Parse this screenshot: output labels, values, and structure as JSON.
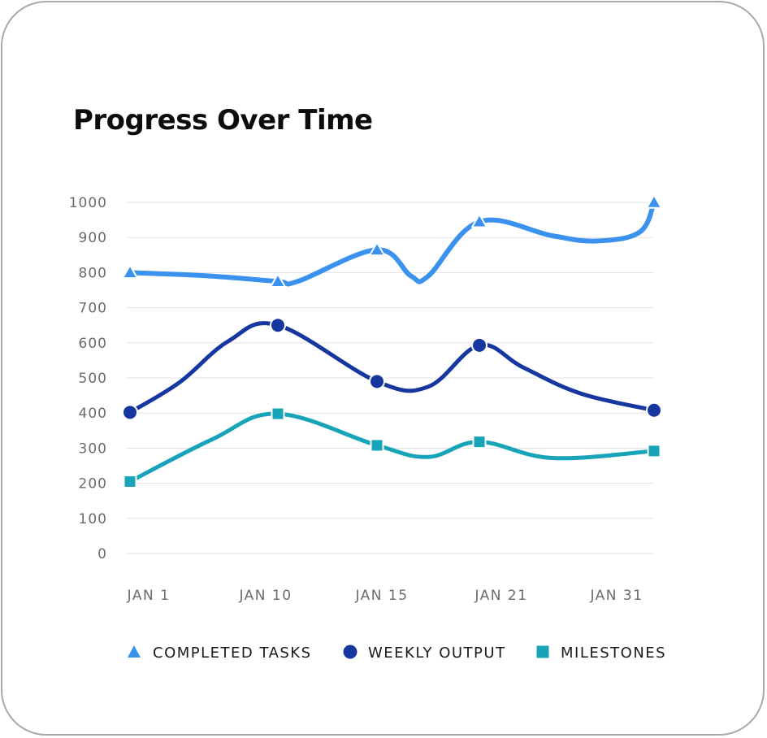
{
  "chart_data": {
    "type": "line",
    "title": "Progress Over Time",
    "xlabel": "",
    "ylabel": "",
    "ylim": [
      0,
      1000
    ],
    "yticks": [
      0,
      100,
      200,
      300,
      400,
      500,
      600,
      700,
      800,
      900,
      1000
    ],
    "x_tick_labels": [
      "JAN 1",
      "JAN 10",
      "JAN 15",
      "JAN 21",
      "JAN 31"
    ],
    "x_ticks": [
      1,
      10,
      15,
      21,
      31
    ],
    "x_domain": [
      0,
      32
    ],
    "grid": true,
    "legend_position": "bottom",
    "series": [
      {
        "name": "COMPLETED TASKS",
        "color": "#3b91ee",
        "marker": "triangle",
        "x": [
          1,
          6,
          10,
          11,
          15,
          17,
          18,
          21,
          26,
          29,
          32
        ],
        "values": [
          800,
          790,
          775,
          775,
          865,
          790,
          790,
          945,
          905,
          890,
          915
        ],
        "marker_x": [
          1,
          10,
          15,
          21,
          33
        ],
        "marker_values": [
          800,
          775,
          865,
          945,
          1000
        ]
      },
      {
        "name": "WEEKLY OUTPUT",
        "color": "#1637a0",
        "marker": "circle",
        "x": [
          1,
          4,
          7,
          10,
          15,
          18,
          21,
          24,
          28,
          33
        ],
        "values": [
          402,
          487,
          605,
          650,
          490,
          475,
          593,
          530,
          455,
          408
        ],
        "marker_x": [
          1,
          10,
          15,
          21,
          33
        ],
        "marker_values": [
          402,
          650,
          490,
          593,
          408
        ]
      },
      {
        "name": "MILESTONES",
        "color": "#17a3b8",
        "marker": "square",
        "x": [
          1,
          6,
          10,
          15,
          18,
          21,
          26,
          33
        ],
        "values": [
          205,
          325,
          398,
          308,
          275,
          318,
          272,
          292
        ],
        "marker_x": [
          1,
          10,
          15,
          21,
          33
        ],
        "marker_values": [
          205,
          398,
          308,
          318,
          292
        ]
      }
    ]
  }
}
